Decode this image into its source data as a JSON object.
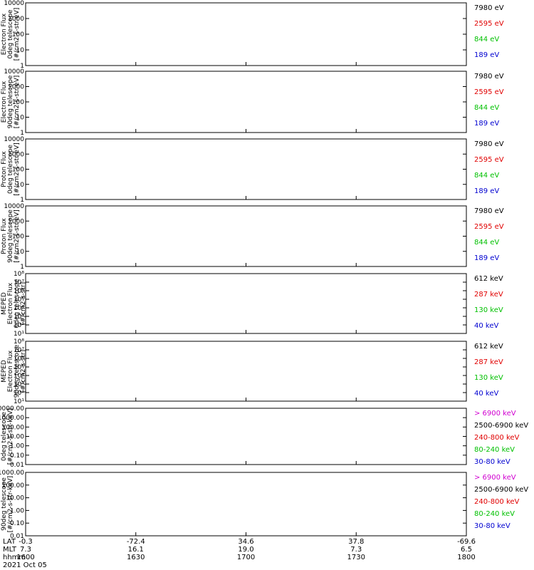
{
  "chart_data": {
    "type": "line",
    "panels": [
      {
        "ylabel": [
          "Electron Flux",
          "0deg telescope",
          "[#/cm2-s-str-eV]"
        ],
        "yscale": "log",
        "ylim": [
          1,
          10000
        ],
        "yticks": [
          "1",
          "10",
          "100",
          "1000",
          "10000"
        ],
        "legend": [
          {
            "label": "7980 eV",
            "color": "#000000"
          },
          {
            "label": "2595 eV",
            "color": "#e00000"
          },
          {
            "label": "844 eV",
            "color": "#00c000"
          },
          {
            "label": "189 eV",
            "color": "#0000d0"
          }
        ]
      },
      {
        "ylabel": [
          "Electron Flux",
          "90deg telescope",
          "[#/cm2-s-str-eV]"
        ],
        "yscale": "log",
        "ylim": [
          1,
          10000
        ],
        "yticks": [
          "1",
          "10",
          "100",
          "1000",
          "10000"
        ],
        "legend": [
          {
            "label": "7980 eV",
            "color": "#000000"
          },
          {
            "label": "2595 eV",
            "color": "#e00000"
          },
          {
            "label": "844 eV",
            "color": "#00c000"
          },
          {
            "label": "189 eV",
            "color": "#0000d0"
          }
        ]
      },
      {
        "ylabel": [
          "Proton Flux",
          "0deg telescope",
          "[#/cm2-s-str-eV]"
        ],
        "yscale": "log",
        "ylim": [
          1,
          10000
        ],
        "yticks": [
          "1",
          "10",
          "100",
          "1000",
          "10000"
        ],
        "legend": [
          {
            "label": "7980 eV",
            "color": "#000000"
          },
          {
            "label": "2595 eV",
            "color": "#e00000"
          },
          {
            "label": "844 eV",
            "color": "#00c000"
          },
          {
            "label": "189 eV",
            "color": "#0000d0"
          }
        ]
      },
      {
        "ylabel": [
          "Proton Flux",
          "90deg telescope",
          "[#/cm2-s-str-eV]"
        ],
        "yscale": "log",
        "ylim": [
          1,
          10000
        ],
        "yticks": [
          "1",
          "10",
          "100",
          "1000",
          "10000"
        ],
        "legend": [
          {
            "label": "7980 eV",
            "color": "#000000"
          },
          {
            "label": "2595 eV",
            "color": "#e00000"
          },
          {
            "label": "844 eV",
            "color": "#00c000"
          },
          {
            "label": "189 eV",
            "color": "#0000d0"
          }
        ]
      },
      {
        "ylabel": [
          "MEPED",
          "Electron Flux",
          "0deg telescope",
          "[#/cm2-s-str]"
        ],
        "yscale": "log",
        "ylim": [
          10,
          100000000
        ],
        "yticks": [
          "10¹",
          "10²",
          "10³",
          "10⁴",
          "10⁵",
          "10⁶",
          "10⁷",
          "10⁸"
        ],
        "legend": [
          {
            "label": "612 keV",
            "color": "#000000"
          },
          {
            "label": "287 keV",
            "color": "#e00000"
          },
          {
            "label": "130 keV",
            "color": "#00c000"
          },
          {
            "label": "40 keV",
            "color": "#0000d0"
          }
        ]
      },
      {
        "ylabel": [
          "MEPED",
          "Electron Flux",
          "90deg telescope",
          "[#/cm2-s-str]"
        ],
        "yscale": "log",
        "ylim": [
          10,
          100000000
        ],
        "yticks": [
          "10¹",
          "10²",
          "10³",
          "10⁴",
          "10⁵",
          "10⁶",
          "10⁷",
          "10⁸"
        ],
        "legend": [
          {
            "label": "612 keV",
            "color": "#000000"
          },
          {
            "label": "287 keV",
            "color": "#e00000"
          },
          {
            "label": "130 keV",
            "color": "#00c000"
          },
          {
            "label": "40 keV",
            "color": "#0000d0"
          }
        ]
      },
      {
        "ylabel": [
          "0deg telescope",
          "[#/cm2-s-str-keV]"
        ],
        "yscale": "log",
        "ylim": [
          0.01,
          10000
        ],
        "yticks": [
          "0.01",
          "0.10",
          "1.00",
          "10.00",
          "100.00",
          "1000.00",
          "10000.00"
        ],
        "legend": [
          {
            "label": "> 6900 keV",
            "color": "#d000d0"
          },
          {
            "label": "2500-6900 keV",
            "color": "#000000"
          },
          {
            "label": "240-800 keV",
            "color": "#e00000"
          },
          {
            "label": "80-240 keV",
            "color": "#00c000"
          },
          {
            "label": "30-80 keV",
            "color": "#0000d0"
          }
        ]
      },
      {
        "ylabel": [
          "90deg telescope",
          "[#/cm2-s-str-keV]"
        ],
        "yscale": "log",
        "ylim": [
          0.01,
          1000
        ],
        "yticks": [
          "0.01",
          "0.10",
          "1.00",
          "10.00",
          "100.00",
          "1000.00"
        ],
        "legend": [
          {
            "label": "> 6900 keV",
            "color": "#d000d0"
          },
          {
            "label": "2500-6900 keV",
            "color": "#000000"
          },
          {
            "label": "240-800 keV",
            "color": "#e00000"
          },
          {
            "label": "80-240 keV",
            "color": "#00c000"
          },
          {
            "label": "30-80 keV",
            "color": "#0000d0"
          }
        ]
      }
    ],
    "xaxis": {
      "row_labels": [
        "LAT",
        "MLT",
        "hhmm"
      ],
      "date": "2021 Oct 05",
      "ticks": [
        {
          "lat": "-0.3",
          "mlt": "7.3",
          "hhmm": "1600"
        },
        {
          "lat": "-72.4",
          "mlt": "16.1",
          "hhmm": "1630"
        },
        {
          "lat": "34.6",
          "mlt": "19.0",
          "hhmm": "1700"
        },
        {
          "lat": "37.8",
          "mlt": "7.3",
          "hhmm": "1730"
        },
        {
          "lat": "-69.6",
          "mlt": "6.5",
          "hhmm": "1800"
        }
      ]
    }
  }
}
